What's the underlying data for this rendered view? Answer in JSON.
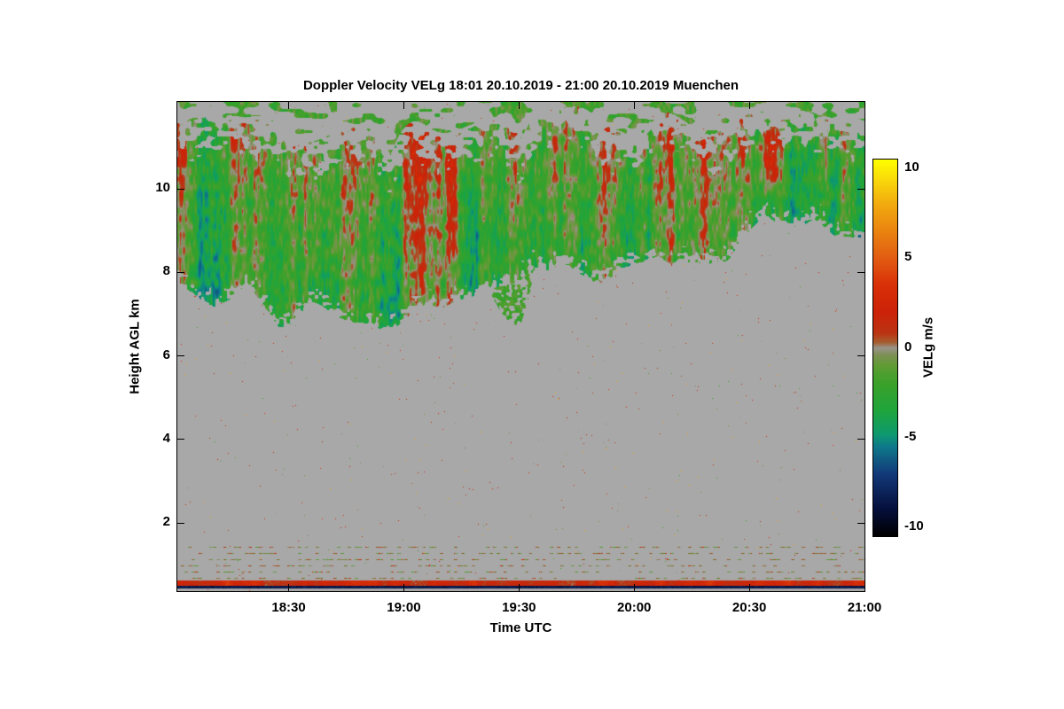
{
  "chart_data": {
    "type": "heatmap",
    "title": "Doppler Velocity VELg   18:01 20.10.2019 - 21:00 20.10.2019 Muenchen",
    "xlabel": "Time UTC",
    "ylabel": "Height AGL km",
    "x_start": "18:01",
    "x_end": "21:00",
    "x_ticks": [
      "18:30",
      "19:00",
      "19:30",
      "20:00",
      "20:30",
      "21:00"
    ],
    "y_ticks_km": [
      2,
      4,
      6,
      8,
      10
    ],
    "y_range_km": [
      0.37,
      12.08
    ],
    "grid": false,
    "background": "#ffffff",
    "nodata_color": "#a8a8a8",
    "colorbar": {
      "label": "VELg m/s",
      "position": "right",
      "ticks": [
        10,
        5,
        0,
        -5,
        -10
      ],
      "range": [
        -10.5,
        10.5
      ],
      "stops": [
        {
          "v": -10.5,
          "c": "#000000"
        },
        {
          "v": -9.0,
          "c": "#050f3c"
        },
        {
          "v": -7.0,
          "c": "#123a7a"
        },
        {
          "v": -5.5,
          "c": "#0e7a8a"
        },
        {
          "v": -4.8,
          "c": "#0e9a6e"
        },
        {
          "v": -3.5,
          "c": "#1fa53c"
        },
        {
          "v": -2.0,
          "c": "#3aa12a"
        },
        {
          "v": -1.0,
          "c": "#5f9c33"
        },
        {
          "v": -0.4,
          "c": "#7f9055"
        },
        {
          "v": 0.0,
          "c": "#98938b"
        },
        {
          "v": 0.3,
          "c": "#a55e31"
        },
        {
          "v": 0.8,
          "c": "#bb3414"
        },
        {
          "v": 2.0,
          "c": "#cc2208"
        },
        {
          "v": 3.5,
          "c": "#d93008"
        },
        {
          "v": 5.0,
          "c": "#e25c12"
        },
        {
          "v": 6.5,
          "c": "#ea8410"
        },
        {
          "v": 8.0,
          "c": "#f2aa0e"
        },
        {
          "v": 9.3,
          "c": "#f8d70a"
        },
        {
          "v": 10.5,
          "c": "#ffff00"
        }
      ]
    },
    "features": {
      "cloud_band": {
        "description": "Cloud layer between ~7 and ~11.8 km AGL with Doppler velocities mostly -3 to 0 m/s (green) and embedded vertical streaks of +1 to +5 m/s (red/orange). Ragged gray gaps intrude at cloud top near 19:00 and 19:30. Cloud base rises from ~7 km to ~9.5 km after 20:30. Detached green wisps above the main band near the plot top.",
        "top_km_mean": 11.55,
        "top_dips": [
          {
            "t": 0.31,
            "depth": 1.0,
            "w": 0.05
          },
          {
            "t": 0.5,
            "depth": 0.6,
            "w": 0.035
          },
          {
            "t": 0.67,
            "depth": 0.5,
            "w": 0.03
          }
        ],
        "base_km_profile": [
          [
            0.0,
            7.6
          ],
          [
            0.05,
            7.15
          ],
          [
            0.1,
            7.8
          ],
          [
            0.15,
            7.05
          ],
          [
            0.2,
            7.5
          ],
          [
            0.27,
            6.95
          ],
          [
            0.3,
            6.8
          ],
          [
            0.35,
            7.3
          ],
          [
            0.4,
            7.6
          ],
          [
            0.45,
            7.75
          ],
          [
            0.5,
            7.6
          ],
          [
            0.55,
            7.9
          ],
          [
            0.6,
            7.65
          ],
          [
            0.65,
            8.0
          ],
          [
            0.7,
            8.2
          ],
          [
            0.75,
            8.0
          ],
          [
            0.8,
            8.3
          ],
          [
            0.85,
            8.8
          ],
          [
            0.9,
            9.3
          ],
          [
            0.95,
            9.45
          ],
          [
            1.0,
            9.2
          ]
        ],
        "mean_velocity_ms": -1.5,
        "streak_velocity_ms": 4,
        "red_patch": {
          "t_center": 0.8625,
          "km_center": 10.7,
          "bonus_ms": 4.5
        }
      },
      "surface_layer": {
        "description": "Thin strong positive-velocity (red/orange, +2 to +5 m/s) layer at ~0.5-0.6 km AGL with a near-black dark line just below it",
        "red_km": [
          0.5,
          0.63
        ],
        "dark_km": [
          0.44,
          0.5
        ]
      },
      "speckle_rows_km": [
        0.68,
        0.82,
        0.97,
        1.12,
        1.28,
        1.43
      ],
      "speckle_description": "Sparse colored noise pixels (olive/green/red/yellow) scattered over the gray no-data background; dotted olive-green/red horizontal rows below 1.5 km"
    }
  }
}
